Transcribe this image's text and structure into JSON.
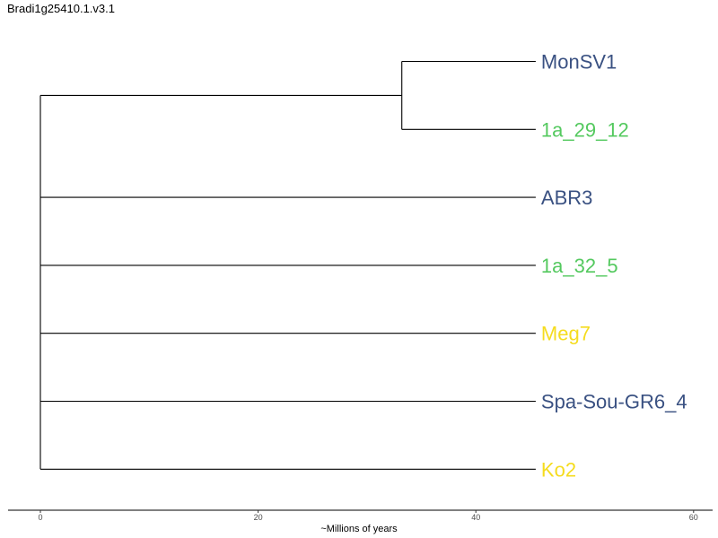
{
  "title": "Bradi1g25410.1.v3.1",
  "axis": {
    "label": "~Millions of years",
    "range": [
      -3,
      62.5
    ],
    "ticks": [
      0,
      20,
      40,
      60
    ]
  },
  "colors": {
    "dark_blue": "#3a5182",
    "green": "#54c95f",
    "yellow": "#f5dc1f",
    "branch": "#000000"
  },
  "tree": {
    "tip_depth": 45.5,
    "nodes": [
      {
        "id": "root",
        "type": "internal",
        "depth": 0,
        "children": [
          "n1",
          "ABR3",
          "1a_32_5",
          "Meg7",
          "Spa-Sou-GR6_4",
          "Ko2"
        ]
      },
      {
        "id": "n1",
        "type": "internal",
        "depth": 33.2,
        "children": [
          "MonSV1",
          "1a_29_12"
        ]
      }
    ],
    "tips": [
      {
        "label": "MonSV1",
        "color": "#3a5182"
      },
      {
        "label": "1a_29_12",
        "color": "#54c95f"
      },
      {
        "label": "ABR3",
        "color": "#3a5182"
      },
      {
        "label": "1a_32_5",
        "color": "#54c95f"
      },
      {
        "label": "Meg7",
        "color": "#f5dc1f"
      },
      {
        "label": "Spa-Sou-GR6_4",
        "color": "#3a5182"
      },
      {
        "label": "Ko2",
        "color": "#f5dc1f"
      }
    ]
  }
}
